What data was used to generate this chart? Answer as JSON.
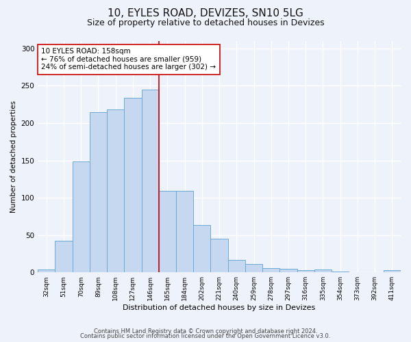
{
  "title1": "10, EYLES ROAD, DEVIZES, SN10 5LG",
  "title2": "Size of property relative to detached houses in Devizes",
  "xlabel": "Distribution of detached houses by size in Devizes",
  "ylabel": "Number of detached properties",
  "categories": [
    "32sqm",
    "51sqm",
    "70sqm",
    "89sqm",
    "108sqm",
    "127sqm",
    "146sqm",
    "165sqm",
    "184sqm",
    "202sqm",
    "221sqm",
    "240sqm",
    "259sqm",
    "278sqm",
    "297sqm",
    "316sqm",
    "335sqm",
    "354sqm",
    "373sqm",
    "392sqm",
    "411sqm"
  ],
  "values": [
    4,
    42,
    149,
    215,
    218,
    234,
    245,
    109,
    109,
    63,
    45,
    17,
    11,
    6,
    5,
    3,
    4,
    1,
    0,
    0,
    3
  ],
  "bar_color": "#c5d8f0",
  "bar_edge_color": "#6aaad4",
  "vline_x_pos": 6.5,
  "vline_color": "#cc0000",
  "annotation_text": "10 EYLES ROAD: 158sqm\n← 76% of detached houses are smaller (959)\n24% of semi-detached houses are larger (302) →",
  "annotation_box_color": "#ffffff",
  "annotation_box_edge_color": "#cc0000",
  "ylim": [
    0,
    310
  ],
  "yticks": [
    0,
    50,
    100,
    150,
    200,
    250,
    300
  ],
  "footnote1": "Contains HM Land Registry data © Crown copyright and database right 2024.",
  "footnote2": "Contains public sector information licensed under the Open Government Licence v3.0.",
  "bg_color": "#eef2fb",
  "grid_color": "#ffffff",
  "title1_fontsize": 11,
  "title2_fontsize": 9,
  "ann_fontsize": 7.5,
  "xlabel_fontsize": 8,
  "ylabel_fontsize": 7.5
}
